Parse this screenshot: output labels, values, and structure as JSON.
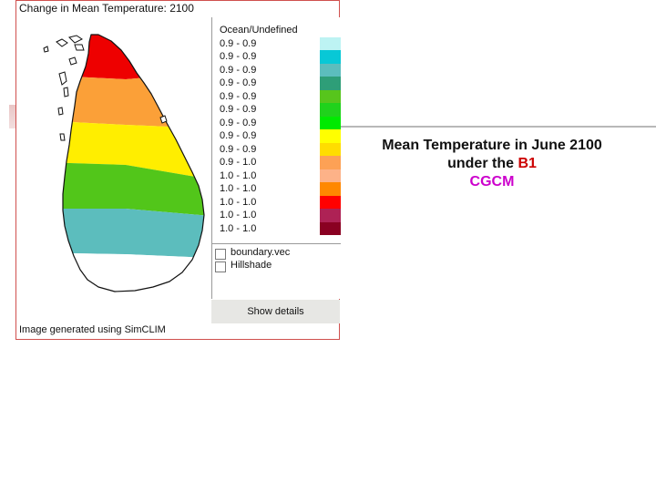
{
  "window": {
    "title": "Change in Mean Temperature: 2100",
    "footer": "Image generated using SimCLIM"
  },
  "legend": {
    "items": [
      {
        "label": "Ocean/Undefined",
        "color": "#ffffff"
      },
      {
        "label": "0.9 - 0.9",
        "color": "#bdf3f3"
      },
      {
        "label": "0.9 - 0.9",
        "color": "#08c8d6"
      },
      {
        "label": "0.9 - 0.9",
        "color": "#5cbdbd"
      },
      {
        "label": "0.9 - 0.9",
        "color": "#2e9e78"
      },
      {
        "label": "0.9 - 0.9",
        "color": "#57c51c"
      },
      {
        "label": "0.9 - 0.9",
        "color": "#20d21c"
      },
      {
        "label": "0.9 - 0.9",
        "color": "#00ea00"
      },
      {
        "label": "0.9 - 0.9",
        "color": "#ffff00"
      },
      {
        "label": "0.9 - 0.9",
        "color": "#ffdd00"
      },
      {
        "label": "0.9 - 1.0",
        "color": "#fda155"
      },
      {
        "label": "1.0 - 1.0",
        "color": "#fdb288"
      },
      {
        "label": "1.0 - 1.0",
        "color": "#ff8800"
      },
      {
        "label": "1.0 - 1.0",
        "color": "#ff0000"
      },
      {
        "label": "1.0 - 1.0",
        "color": "#ae2255"
      },
      {
        "label": "1.0 - 1.0",
        "color": "#8a0022"
      }
    ]
  },
  "map": {
    "bands": [
      {
        "color": "#ee0000"
      },
      {
        "color": "#fba038"
      },
      {
        "color": "#ffee00"
      },
      {
        "color": "#52c61a"
      },
      {
        "color": "#5cbdbd"
      },
      {
        "color": "#ffffff"
      }
    ]
  },
  "layers": [
    {
      "label": "boundary.vec",
      "checked": false
    },
    {
      "label": "Hillshade",
      "checked": false
    }
  ],
  "details_button": "Show details",
  "caption": {
    "line1": "Mean Temperature in June 2100",
    "line2_prefix": "under the ",
    "line2_highlight": "B1",
    "line3": "CGCM"
  }
}
